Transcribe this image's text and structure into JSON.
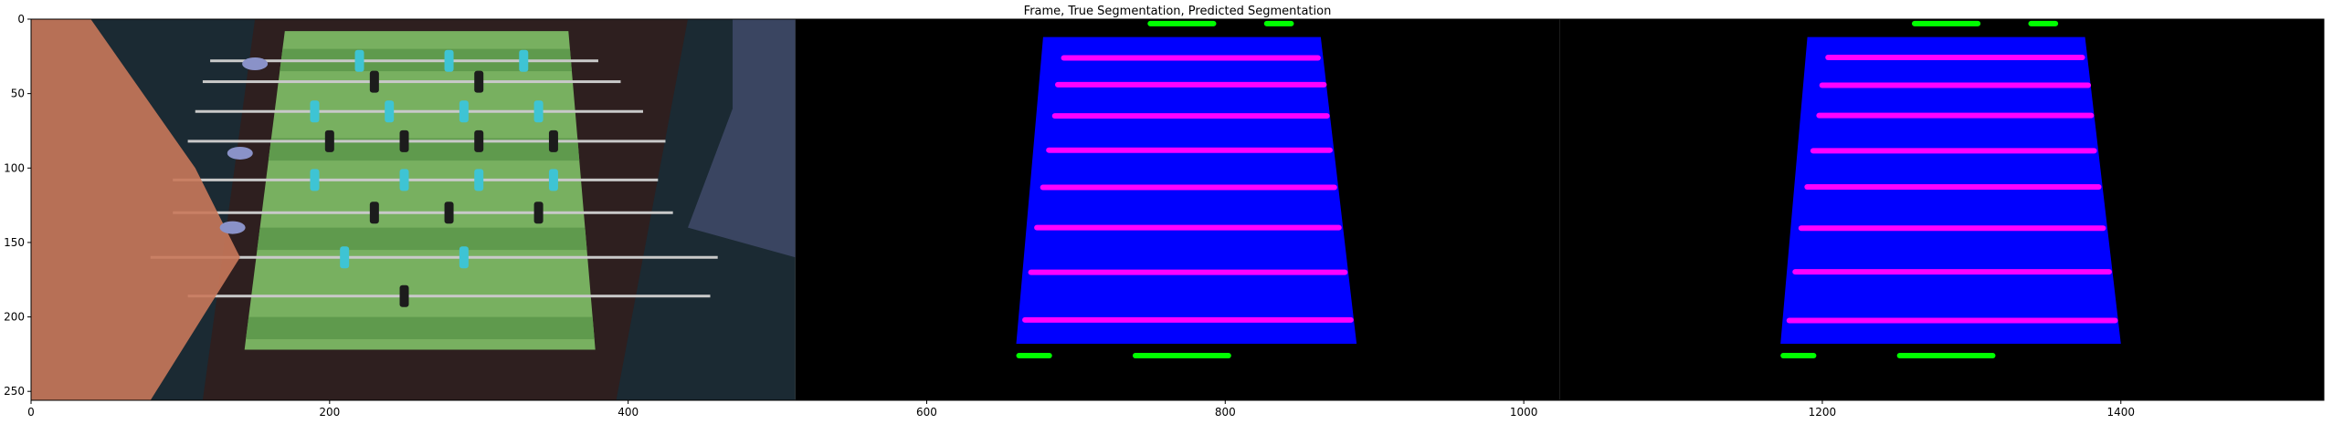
{
  "chart_data": {
    "type": "image-panels",
    "title": "Frame, True Segmentation, Predicted Segmentation",
    "xlim": [
      0,
      1536
    ],
    "ylim": [
      256,
      0
    ],
    "xticks": [
      0,
      200,
      400,
      600,
      800,
      1000,
      1200,
      1400
    ],
    "yticks": [
      0,
      50,
      100,
      150,
      200,
      250
    ],
    "panels": [
      {
        "name": "Frame",
        "x_range": [
          0,
          512
        ]
      },
      {
        "name": "True Segmentation",
        "x_range": [
          512,
          1024
        ]
      },
      {
        "name": "Predicted Segmentation",
        "x_range": [
          1024,
          1536
        ]
      }
    ],
    "segmentation": {
      "table_color": "#0000ff",
      "rod_color": "#ff00ff",
      "goal_color": "#00ff00",
      "background_color": "#000000"
    },
    "frame_colors": {
      "carpet": "#1b2a33",
      "cabinet": "#2e1f1f",
      "field": "#78b060",
      "field_dark": "#5f9a4d",
      "rod": "#c9c9c9",
      "team_a": "#3ec4d4",
      "team_b": "#1c1c1c",
      "sleeve": "#c9785a",
      "glove": "#8a92c8"
    }
  }
}
